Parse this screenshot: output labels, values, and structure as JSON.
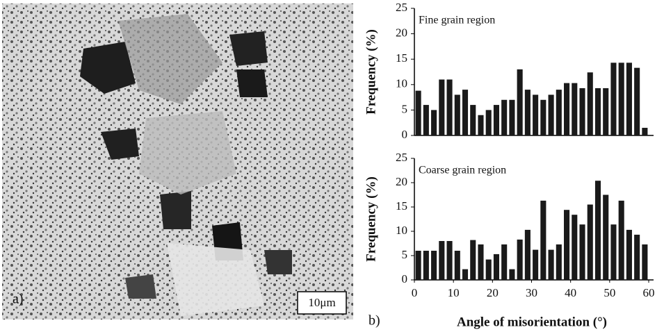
{
  "image": {
    "label": "a)",
    "scale_bar": "10μm"
  },
  "panel_label": "b)",
  "chart_data": [
    {
      "type": "bar",
      "title": "Fine grain region",
      "ylabel": "Frequency (%)",
      "color": "#1a1a1a",
      "x": [
        1,
        3,
        5,
        7,
        9,
        11,
        13,
        15,
        17,
        19,
        21,
        23,
        25,
        27,
        29,
        31,
        33,
        35,
        37,
        39,
        41,
        43,
        45,
        47,
        49,
        51,
        53,
        55,
        57,
        59
      ],
      "values": [
        8.8,
        6,
        5,
        11,
        11,
        8,
        9,
        6,
        4,
        5,
        6,
        7,
        7,
        13,
        9,
        8,
        7,
        8,
        9,
        10.3,
        10.3,
        9.3,
        12.4,
        9.3,
        9.3,
        14.3,
        14.3,
        14.3,
        13.3,
        1.5
      ],
      "xlim": [
        0,
        61
      ],
      "ylim": [
        0,
        25
      ],
      "yticks": [
        0,
        5,
        10,
        15,
        20,
        25
      ]
    },
    {
      "type": "bar",
      "title": "Coarse grain region",
      "ylabel": "Frequency (%)",
      "xlabel": "Angle of misorientation (°)",
      "color": "#1a1a1a",
      "x": [
        1,
        3,
        5,
        7,
        9,
        11,
        13,
        15,
        17,
        19,
        21,
        23,
        25,
        27,
        29,
        31,
        33,
        35,
        37,
        39,
        41,
        43,
        45,
        47,
        49,
        51,
        53,
        55,
        57,
        59
      ],
      "values": [
        6,
        6,
        6,
        8,
        8,
        6,
        2.2,
        8.2,
        7.3,
        4.2,
        5.3,
        7.3,
        2.2,
        8.3,
        10.3,
        6.2,
        16.3,
        6.2,
        7.3,
        14.4,
        13.4,
        11.4,
        15.5,
        20.4,
        17.5,
        11.4,
        16.3,
        10.3,
        9.3,
        7.3
      ],
      "xlim": [
        0,
        61
      ],
      "ylim": [
        0,
        25
      ],
      "yticks": [
        0,
        5,
        10,
        15,
        20,
        25
      ],
      "xticks": [
        0,
        10,
        20,
        30,
        40,
        50,
        60
      ]
    }
  ]
}
